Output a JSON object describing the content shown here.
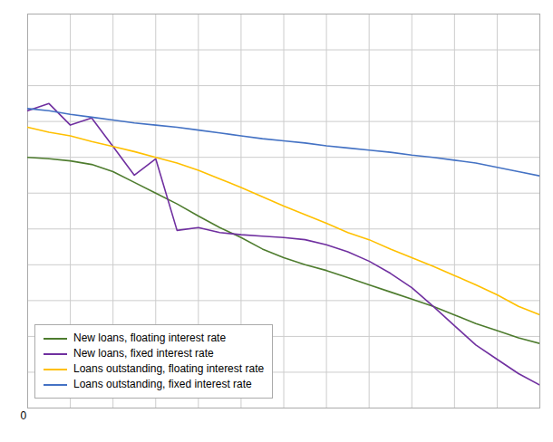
{
  "chart_data": {
    "type": "line",
    "x": [
      0,
      1,
      2,
      3,
      4,
      5,
      6,
      7,
      8,
      9,
      10,
      11,
      12,
      13,
      14,
      15,
      16,
      17,
      18,
      19,
      20,
      21,
      22,
      23,
      24
    ],
    "series": [
      {
        "name": "New loans, floating interest rate",
        "color": "#4e7c2e",
        "values": [
          3.5,
          3.48,
          3.45,
          3.4,
          3.3,
          3.15,
          3.0,
          2.85,
          2.68,
          2.52,
          2.38,
          2.22,
          2.1,
          2.0,
          1.92,
          1.82,
          1.72,
          1.62,
          1.52,
          1.42,
          1.3,
          1.18,
          1.08,
          0.98,
          0.9
        ]
      },
      {
        "name": "New loans, fixed interest rate",
        "color": "#7030a0",
        "values": [
          4.15,
          4.25,
          3.95,
          4.05,
          3.65,
          3.25,
          3.48,
          2.48,
          2.52,
          2.45,
          2.42,
          2.4,
          2.38,
          2.35,
          2.28,
          2.18,
          2.05,
          1.88,
          1.68,
          1.42,
          1.15,
          0.88,
          0.68,
          0.48,
          0.32
        ]
      },
      {
        "name": "Loans outstanding, floating interest rate",
        "color": "#ffc000",
        "values": [
          3.92,
          3.85,
          3.8,
          3.72,
          3.65,
          3.58,
          3.5,
          3.42,
          3.32,
          3.2,
          3.08,
          2.95,
          2.82,
          2.7,
          2.58,
          2.45,
          2.35,
          2.22,
          2.1,
          1.98,
          1.85,
          1.72,
          1.58,
          1.42,
          1.3
        ]
      },
      {
        "name": "Loans outstanding, fixed interest rate",
        "color": "#4472c4",
        "values": [
          4.18,
          4.15,
          4.1,
          4.06,
          4.02,
          3.98,
          3.95,
          3.92,
          3.88,
          3.84,
          3.8,
          3.76,
          3.73,
          3.7,
          3.66,
          3.63,
          3.6,
          3.57,
          3.53,
          3.5,
          3.46,
          3.42,
          3.36,
          3.3,
          3.24
        ]
      }
    ],
    "xlim": [
      0,
      24
    ],
    "xticks": [
      0,
      2,
      4,
      6,
      8,
      10,
      12,
      14,
      16,
      18,
      20,
      22,
      24
    ],
    "ylim": [
      0,
      5.5
    ],
    "yticks": [
      0,
      0.5,
      1,
      1.5,
      2,
      2.5,
      3,
      3.5,
      4,
      4.5,
      5,
      5.5
    ],
    "grid": true,
    "tick_labels": false,
    "legend": "lower left",
    "annotations": [
      "0"
    ]
  }
}
